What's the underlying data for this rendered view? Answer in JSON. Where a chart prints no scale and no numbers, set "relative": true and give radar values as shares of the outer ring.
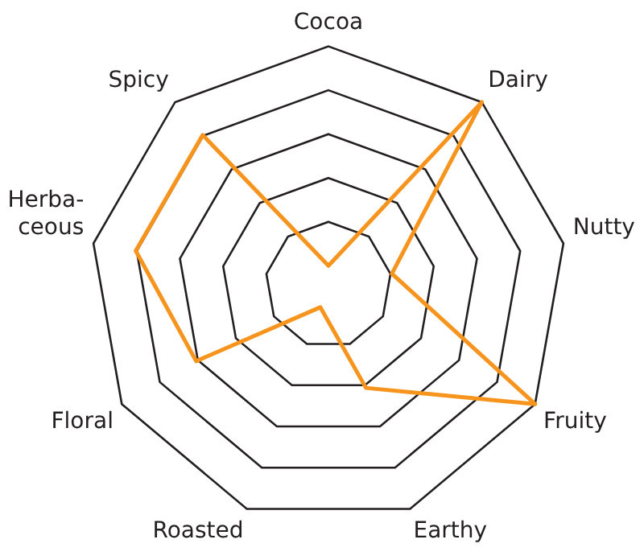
{
  "chart_data": {
    "type": "radar",
    "relative": true,
    "categories": [
      "Cocoa",
      "Dairy",
      "Nutty",
      "Fruity",
      "Earthy",
      "Roasted",
      "Floral",
      "Herba-\nceous",
      "Spicy"
    ],
    "series": [
      {
        "color": "#f7941d",
        "values": [
          0.08,
          1,
          0.27,
          1,
          0.46,
          0.1,
          0.64,
          0.82,
          0.82
        ]
      }
    ],
    "grid": true,
    "legend": false,
    "marker": "none",
    "line_style": "solid"
  }
}
